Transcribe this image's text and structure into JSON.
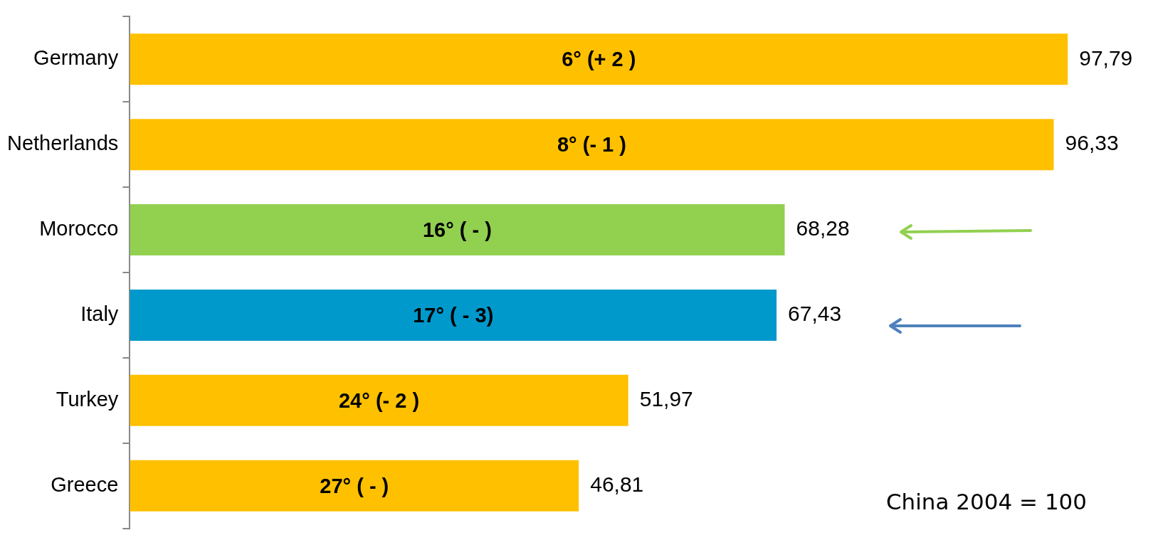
{
  "chart_data": {
    "type": "bar",
    "orientation": "horizontal",
    "categories": [
      "Germany",
      "Netherlands",
      "Morocco",
      "Italy",
      "Turkey",
      "Greece"
    ],
    "values": [
      97.79,
      96.33,
      68.28,
      67.43,
      51.97,
      46.81
    ],
    "colors": [
      "#ffc000",
      "#ffc000",
      "#92d050",
      "#0099cc",
      "#ffc000",
      "#ffc000"
    ],
    "value_labels": [
      "97,79",
      "96,33",
      "68,28",
      "67,43",
      "51,97",
      "46,81"
    ],
    "tick_labels": "y",
    "grid": false,
    "legend": false,
    "annotations": [
      "6° (+ 2 )",
      "8° (- 1 )",
      "16° ( - )",
      "17° ( - 3)",
      "24° (- 2 )",
      "27° ( - )",
      "China 2004 = 100"
    ]
  }
}
